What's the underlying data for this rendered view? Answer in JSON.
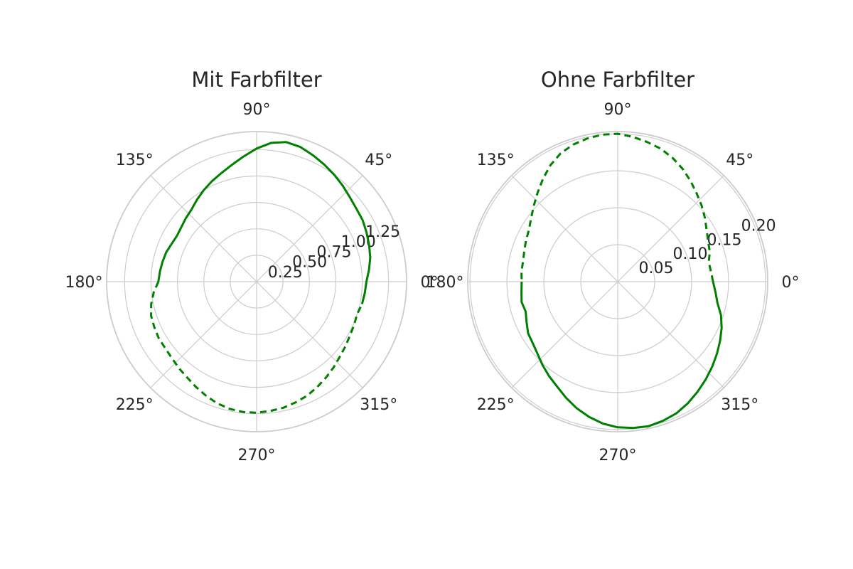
{
  "chart_data": [
    {
      "type": "polar-line",
      "title": "Mit Farbfilter",
      "theta_tick_labels": [
        "0°",
        "45°",
        "90°",
        "135°",
        "180°",
        "225°",
        "270°",
        "315°"
      ],
      "r_ticks": [
        0.25,
        0.5,
        0.75,
        1.0,
        1.25
      ],
      "r_tick_labels": [
        "0.25",
        "0.50",
        "0.75",
        "1.00",
        "1.25"
      ],
      "rlim": [
        0,
        1.42
      ],
      "grid": true,
      "color": "#008000",
      "series": [
        {
          "linestyle": "solid",
          "theta_deg": [
            -12,
            -6,
            0,
            6,
            12,
            18,
            24,
            30,
            36,
            42,
            48,
            54,
            60,
            66,
            72,
            78,
            84,
            90,
            96,
            102,
            108,
            114,
            120,
            126,
            132,
            138,
            144,
            150,
            156,
            162,
            168,
            174,
            180
          ],
          "r": [
            1.02,
            1.03,
            1.04,
            1.07,
            1.1,
            1.12,
            1.14,
            1.16,
            1.17,
            1.19,
            1.22,
            1.25,
            1.28,
            1.31,
            1.34,
            1.35,
            1.32,
            1.26,
            1.19,
            1.13,
            1.08,
            1.04,
            1.0,
            0.96,
            0.92,
            0.9,
            0.88,
            0.87,
            0.88,
            0.9,
            0.91,
            0.92,
            0.93
          ]
        },
        {
          "linestyle": "dashed",
          "theta_deg": [
            180,
            186,
            192,
            198,
            204,
            210,
            216,
            222,
            228,
            234,
            240,
            246,
            252,
            258,
            264,
            270,
            276,
            282,
            288,
            294,
            300,
            306,
            312,
            318,
            324,
            330,
            336,
            342,
            348
          ],
          "r": [
            0.93,
            0.98,
            1.02,
            1.05,
            1.06,
            1.07,
            1.07,
            1.08,
            1.1,
            1.12,
            1.15,
            1.18,
            1.21,
            1.23,
            1.24,
            1.24,
            1.23,
            1.22,
            1.2,
            1.18,
            1.15,
            1.12,
            1.09,
            1.06,
            1.04,
            1.02,
            1.01,
            1.0,
            1.02
          ]
        }
      ]
    },
    {
      "type": "polar-line",
      "title": "Ohne Farbfilter",
      "theta_tick_labels": [
        "0°",
        "45°",
        "90°",
        "135°",
        "180°",
        "225°",
        "270°",
        "315°"
      ],
      "r_ticks": [
        0.05,
        0.1,
        0.15,
        0.2
      ],
      "r_tick_labels": [
        "0.05",
        "0.10",
        "0.15",
        "0.20"
      ],
      "rlim": [
        0,
        0.203
      ],
      "grid": true,
      "color": "#008000",
      "series": [
        {
          "linestyle": "dashed",
          "theta_deg": [
            0,
            6,
            12,
            18,
            24,
            30,
            36,
            42,
            48,
            54,
            60,
            66,
            72,
            78,
            84,
            90,
            96,
            102,
            108,
            114,
            120,
            126,
            132,
            138,
            144,
            150,
            156,
            162,
            168,
            174,
            180
          ],
          "r": [
            0.129,
            0.127,
            0.126,
            0.131,
            0.134,
            0.139,
            0.146,
            0.153,
            0.16,
            0.168,
            0.176,
            0.183,
            0.189,
            0.193,
            0.197,
            0.2,
            0.2,
            0.198,
            0.195,
            0.19,
            0.182,
            0.172,
            0.162,
            0.153,
            0.145,
            0.139,
            0.136,
            0.133,
            0.131,
            0.131,
            0.13
          ]
        },
        {
          "linestyle": "solid",
          "theta_deg": [
            180,
            186,
            192,
            198,
            204,
            210,
            216,
            222,
            228,
            234,
            240,
            246,
            252,
            258,
            264,
            270,
            276,
            282,
            288,
            294,
            300,
            306,
            312,
            318,
            324,
            330,
            336,
            342,
            348,
            354,
            360
          ],
          "r": [
            0.13,
            0.131,
            0.133,
            0.131,
            0.135,
            0.14,
            0.142,
            0.146,
            0.152,
            0.158,
            0.164,
            0.172,
            0.18,
            0.187,
            0.193,
            0.197,
            0.199,
            0.2,
            0.198,
            0.195,
            0.19,
            0.184,
            0.178,
            0.172,
            0.166,
            0.16,
            0.154,
            0.147,
            0.138,
            0.133,
            0.129
          ]
        }
      ]
    }
  ]
}
